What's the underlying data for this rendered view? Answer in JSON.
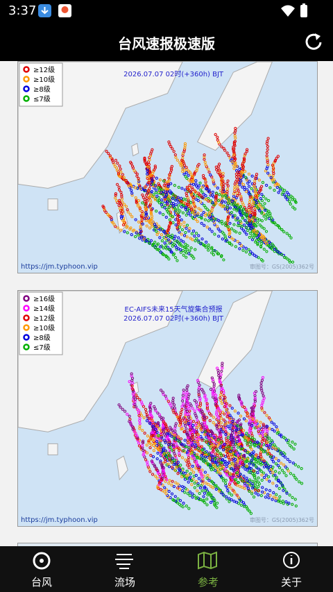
{
  "status_bar": {
    "time": "3:37"
  },
  "app_bar": {
    "title": "台风速报极速版"
  },
  "maps": [
    {
      "legend": [
        {
          "label": "≥12级",
          "color": "#e00000"
        },
        {
          "label": "≥10级",
          "color": "#ff9900"
        },
        {
          "label": "≥8级",
          "color": "#0000dd"
        },
        {
          "label": "≤7级",
          "color": "#00b000"
        }
      ],
      "subtitle": "2026.07.07 02时(+360h) BJT",
      "source": "https://jm.typhoon.vip",
      "approval": "审图号：GS(2005)362号"
    },
    {
      "legend": [
        {
          "label": "≥16级",
          "color": "#800080"
        },
        {
          "label": "≥14级",
          "color": "#ff00ff"
        },
        {
          "label": "≥12级",
          "color": "#e00000"
        },
        {
          "label": "≥10级",
          "color": "#ff9900"
        },
        {
          "label": "≥8级",
          "color": "#0000dd"
        },
        {
          "label": "≤7级",
          "color": "#00b000"
        }
      ],
      "title": "EC-AIFS未来15天气旋集合预报",
      "subtitle": "2026.07.07 02时(+360h) BJT",
      "source": "https://jm.typhoon.vip",
      "approval": "审图号：GS(2005)362号"
    }
  ],
  "tabs": [
    "台风",
    "流场",
    "参考",
    "关于"
  ]
}
